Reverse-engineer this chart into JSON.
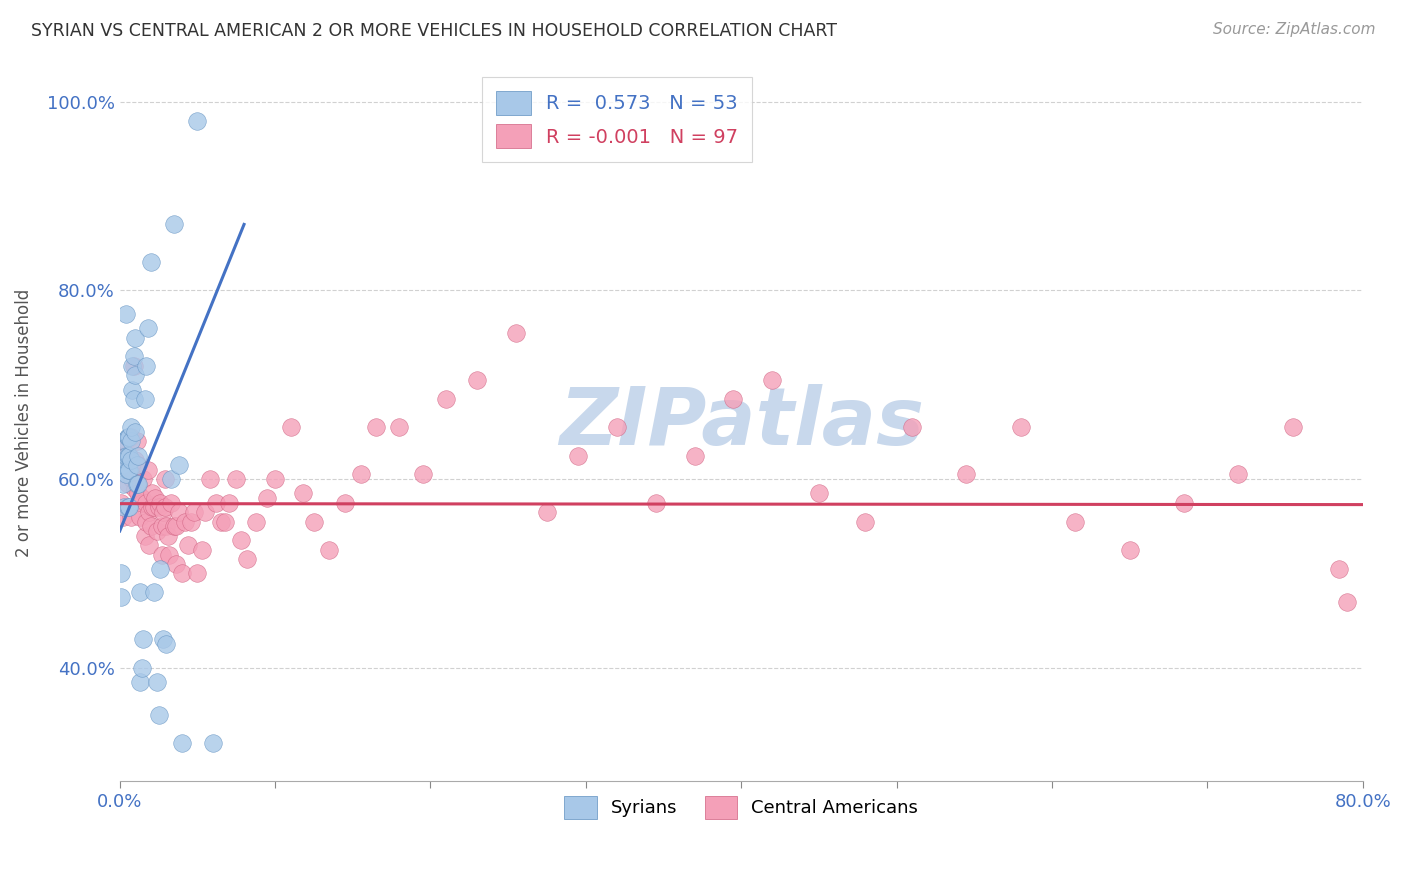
{
  "title": "SYRIAN VS CENTRAL AMERICAN 2 OR MORE VEHICLES IN HOUSEHOLD CORRELATION CHART",
  "source": "Source: ZipAtlas.com",
  "ylabel": "2 or more Vehicles in Household",
  "xlim": [
    0.0,
    0.8
  ],
  "ylim": [
    0.28,
    1.04
  ],
  "x_ticks": [
    0.0,
    0.1,
    0.2,
    0.3,
    0.4,
    0.5,
    0.6,
    0.7,
    0.8
  ],
  "x_tick_labels": [
    "0.0%",
    "",
    "",
    "",
    "",
    "",
    "",
    "",
    "80.0%"
  ],
  "y_ticks": [
    0.4,
    0.6,
    0.8,
    1.0
  ],
  "y_tick_labels": [
    "40.0%",
    "60.0%",
    "80.0%",
    "100.0%"
  ],
  "syrian_color": "#A8C8E8",
  "central_color": "#F4A0B8",
  "syrian_edge_color": "#6090C0",
  "central_edge_color": "#D06080",
  "syrian_line_color": "#4472C4",
  "central_line_color": "#D04060",
  "legend_R_syrian": "0.573",
  "legend_N_syrian": "53",
  "legend_R_central": "-0.001",
  "legend_N_central": "97",
  "watermark": "ZIPatlas",
  "watermark_color": "#C8D8EC",
  "syrian_x": [
    0.001,
    0.001,
    0.002,
    0.002,
    0.003,
    0.003,
    0.003,
    0.004,
    0.004,
    0.004,
    0.005,
    0.005,
    0.005,
    0.005,
    0.005,
    0.006,
    0.006,
    0.006,
    0.006,
    0.007,
    0.007,
    0.007,
    0.008,
    0.008,
    0.009,
    0.009,
    0.01,
    0.01,
    0.01,
    0.011,
    0.011,
    0.012,
    0.012,
    0.013,
    0.013,
    0.014,
    0.015,
    0.016,
    0.017,
    0.018,
    0.02,
    0.022,
    0.024,
    0.025,
    0.026,
    0.028,
    0.03,
    0.033,
    0.035,
    0.038,
    0.04,
    0.05,
    0.06
  ],
  "syrian_y": [
    0.475,
    0.5,
    0.615,
    0.595,
    0.57,
    0.615,
    0.64,
    0.775,
    0.605,
    0.625,
    0.645,
    0.57,
    0.61,
    0.645,
    0.625,
    0.57,
    0.61,
    0.645,
    0.625,
    0.62,
    0.64,
    0.655,
    0.695,
    0.72,
    0.685,
    0.73,
    0.75,
    0.71,
    0.65,
    0.615,
    0.595,
    0.625,
    0.595,
    0.48,
    0.385,
    0.4,
    0.43,
    0.685,
    0.72,
    0.76,
    0.83,
    0.48,
    0.385,
    0.35,
    0.505,
    0.43,
    0.425,
    0.6,
    0.87,
    0.615,
    0.32,
    0.98,
    0.32
  ],
  "central_x": [
    0.001,
    0.002,
    0.003,
    0.004,
    0.005,
    0.005,
    0.006,
    0.007,
    0.007,
    0.008,
    0.009,
    0.01,
    0.01,
    0.011,
    0.012,
    0.012,
    0.013,
    0.014,
    0.014,
    0.015,
    0.016,
    0.017,
    0.017,
    0.018,
    0.019,
    0.019,
    0.02,
    0.021,
    0.021,
    0.022,
    0.023,
    0.024,
    0.025,
    0.026,
    0.027,
    0.027,
    0.028,
    0.029,
    0.029,
    0.03,
    0.031,
    0.032,
    0.033,
    0.035,
    0.036,
    0.036,
    0.038,
    0.04,
    0.042,
    0.044,
    0.046,
    0.048,
    0.05,
    0.053,
    0.055,
    0.058,
    0.062,
    0.065,
    0.068,
    0.07,
    0.075,
    0.078,
    0.082,
    0.088,
    0.095,
    0.1,
    0.11,
    0.118,
    0.125,
    0.135,
    0.145,
    0.155,
    0.165,
    0.18,
    0.195,
    0.21,
    0.23,
    0.255,
    0.275,
    0.295,
    0.32,
    0.345,
    0.37,
    0.395,
    0.42,
    0.45,
    0.48,
    0.51,
    0.545,
    0.58,
    0.615,
    0.65,
    0.685,
    0.72,
    0.755,
    0.785,
    0.79
  ],
  "central_y": [
    0.575,
    0.56,
    0.625,
    0.64,
    0.595,
    0.62,
    0.62,
    0.645,
    0.56,
    0.6,
    0.72,
    0.59,
    0.62,
    0.64,
    0.585,
    0.615,
    0.56,
    0.575,
    0.58,
    0.6,
    0.54,
    0.555,
    0.575,
    0.61,
    0.565,
    0.53,
    0.55,
    0.57,
    0.585,
    0.57,
    0.58,
    0.545,
    0.57,
    0.575,
    0.52,
    0.55,
    0.565,
    0.57,
    0.6,
    0.55,
    0.54,
    0.52,
    0.575,
    0.55,
    0.51,
    0.55,
    0.565,
    0.5,
    0.555,
    0.53,
    0.555,
    0.565,
    0.5,
    0.525,
    0.565,
    0.6,
    0.575,
    0.555,
    0.555,
    0.575,
    0.6,
    0.535,
    0.515,
    0.555,
    0.58,
    0.6,
    0.655,
    0.585,
    0.555,
    0.525,
    0.575,
    0.605,
    0.655,
    0.655,
    0.605,
    0.685,
    0.705,
    0.755,
    0.565,
    0.625,
    0.655,
    0.575,
    0.625,
    0.685,
    0.705,
    0.585,
    0.555,
    0.655,
    0.605,
    0.655,
    0.555,
    0.525,
    0.575,
    0.605,
    0.655,
    0.505,
    0.47
  ],
  "syrian_trendline_x": [
    0.0,
    0.08
  ],
  "syrian_trendline_y": [
    0.545,
    0.87
  ],
  "central_trendline_x": [
    0.0,
    0.8
  ],
  "central_trendline_y": [
    0.574,
    0.573
  ]
}
